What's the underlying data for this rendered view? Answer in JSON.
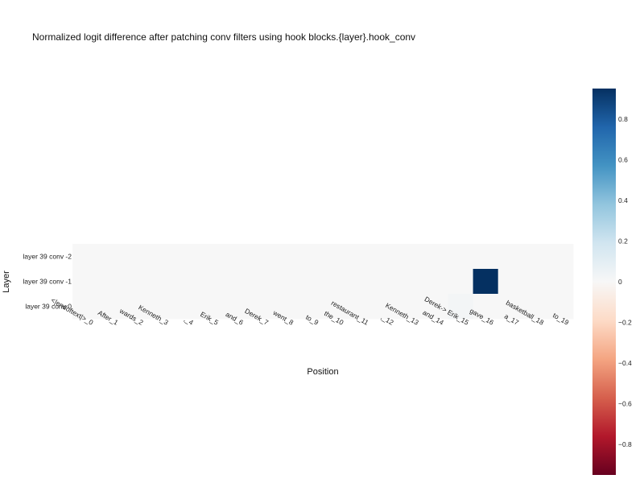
{
  "chart_data": {
    "type": "heatmap",
    "title": "Normalized logit difference after patching conv filters using hook blocks.{layer}.hook_conv",
    "xlabel": "Position",
    "ylabel": "Layer",
    "x_categories": [
      "<|endoftext|>_0",
      "After_1",
      "wards_2",
      "Kenneth_3",
      ",_4",
      "Erik_5",
      "and_6",
      "Derek_7",
      "went_8",
      "to_9",
      "the_10",
      "restaurant_11",
      ",_12",
      "Kenneth_13",
      "and_14",
      "Derek-> Erik_15",
      "gave_16",
      "a_17",
      "basketball_18",
      "to_19"
    ],
    "y_categories": [
      "layer 39 conv -2",
      "layer 39 conv -1",
      "layer 39 conv 0"
    ],
    "values": [
      [
        0,
        0,
        0,
        0,
        0,
        0,
        0,
        0,
        0,
        0,
        0,
        0,
        0,
        0,
        0,
        0,
        0,
        0,
        0,
        0
      ],
      [
        0,
        0,
        0,
        0,
        0,
        0,
        0,
        0,
        0,
        0,
        0,
        0,
        0,
        0,
        0,
        0,
        0.95,
        0,
        0,
        0
      ],
      [
        0,
        0,
        0,
        0,
        0,
        0,
        0,
        0,
        0,
        0,
        0,
        0,
        0,
        0,
        0,
        0.02,
        0,
        0,
        0,
        0
      ]
    ],
    "zrange": [
      -0.95,
      0.95
    ],
    "colorbar_ticks": [
      0.8,
      0.6,
      0.4,
      0.2,
      0,
      -0.2,
      -0.4,
      -0.6,
      -0.8
    ],
    "colorbar_tick_labels": [
      "0.8",
      "0.6",
      "0.4",
      "0.2",
      "0",
      "−0.2",
      "−0.4",
      "−0.6",
      "−0.8"
    ],
    "colorscale": [
      [
        0,
        "#67001f"
      ],
      [
        0.1,
        "#b2182b"
      ],
      [
        0.2,
        "#d6604d"
      ],
      [
        0.3,
        "#f4a582"
      ],
      [
        0.4,
        "#fddbc7"
      ],
      [
        0.5,
        "#f7f7f7"
      ],
      [
        0.6,
        "#d1e5f0"
      ],
      [
        0.7,
        "#92c5de"
      ],
      [
        0.8,
        "#4393c3"
      ],
      [
        0.9,
        "#2166ac"
      ],
      [
        1,
        "#053061"
      ]
    ],
    "grid": false,
    "legend": "colorbar-right"
  }
}
